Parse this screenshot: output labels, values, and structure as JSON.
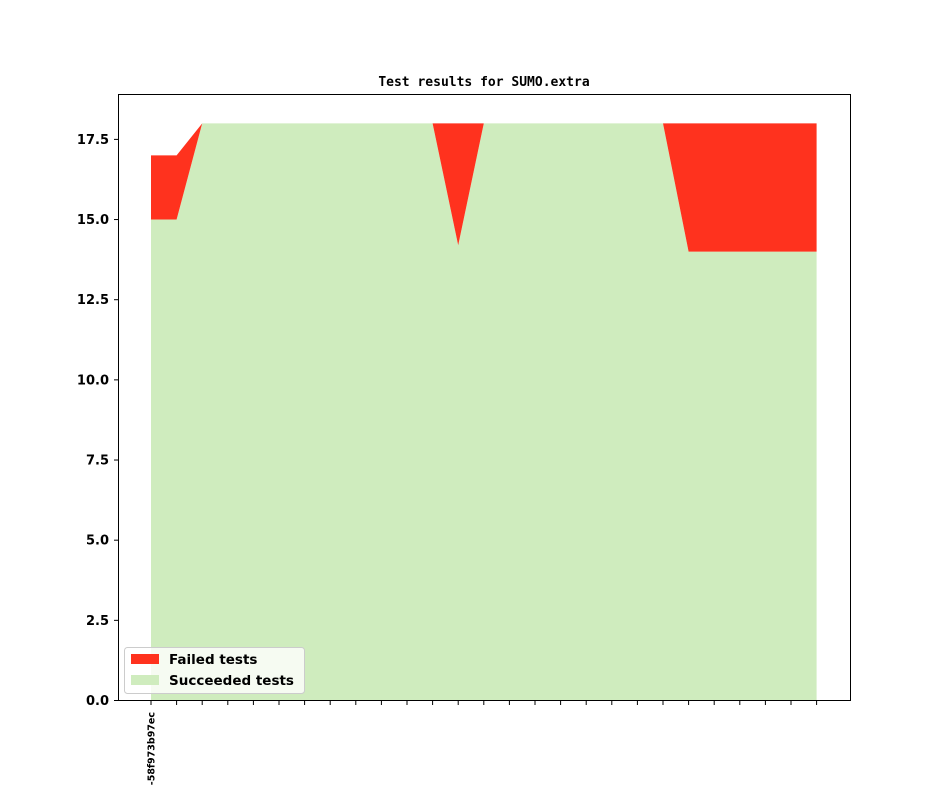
{
  "chart_data": {
    "type": "area",
    "title": "Test results for SUMO.extra",
    "xlabel": "",
    "ylabel": "",
    "ylim": [
      0,
      18.9
    ],
    "yticks": [
      "0.0",
      "2.5",
      "5.0",
      "7.5",
      "10.0",
      "12.5",
      "15.0",
      "17.5"
    ],
    "x_tick_labels": [
      "-58f973b97ec"
    ],
    "x": [
      0,
      1,
      2,
      3,
      4,
      5,
      6,
      7,
      8,
      9,
      10,
      11,
      12,
      13,
      14,
      15,
      16,
      17,
      18,
      19,
      20,
      21,
      22,
      23,
      24,
      25,
      26
    ],
    "stacked": true,
    "series": [
      {
        "name": "Succeeded tests",
        "color": "#cfecbe",
        "values": [
          15,
          15,
          18,
          18,
          18,
          18,
          18,
          18,
          18,
          18,
          18,
          18,
          14.2,
          18,
          18,
          18,
          18,
          18,
          18,
          18,
          18,
          14,
          14,
          14,
          14,
          14,
          14
        ]
      },
      {
        "name": "Failed tests",
        "color": "#ff321e",
        "values": [
          2,
          2,
          0,
          0,
          0,
          0,
          0,
          0,
          0,
          0,
          0,
          0,
          3.8,
          0,
          0,
          0,
          0,
          0,
          0,
          0,
          0,
          4,
          4,
          4,
          4,
          4,
          4
        ]
      }
    ],
    "grid": false,
    "legend_position": "lower-left",
    "legend": [
      "Failed tests",
      "Succeeded tests"
    ]
  }
}
